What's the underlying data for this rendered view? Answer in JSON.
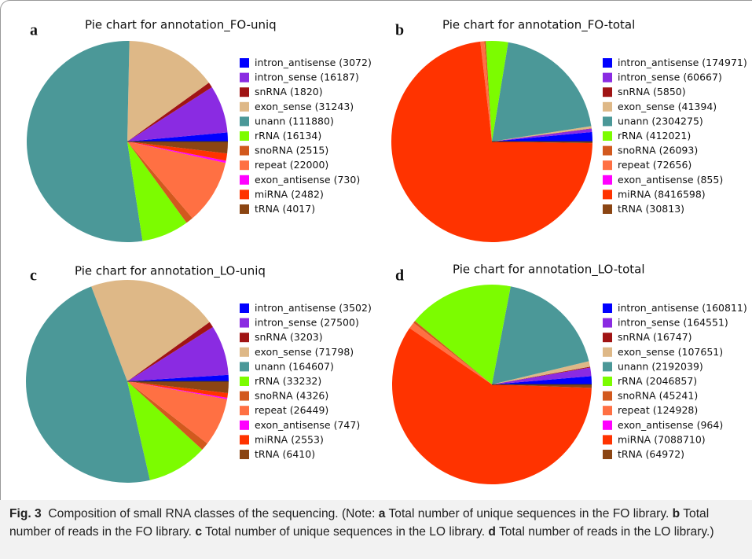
{
  "chart_data": [
    {
      "type": "pie",
      "panel": "a",
      "title": "Pie chart for annotation_FO-uniq",
      "categories": [
        "intron_antisense",
        "intron_sense",
        "snRNA",
        "exon_sense",
        "unann",
        "rRNA",
        "snoRNA",
        "repeat",
        "exon_antisense",
        "miRNA",
        "tRNA"
      ],
      "values": [
        3072,
        16187,
        1820,
        31243,
        111880,
        16134,
        2515,
        22000,
        730,
        2482,
        4017
      ],
      "value_labels": [
        "(3072)",
        "(16187)",
        "(1820)",
        "(31243)",
        "(111880)",
        "(16134)",
        "(2515)",
        "(22000)",
        "(730)",
        "(2482)",
        "(4017)"
      ],
      "colors": [
        "#0000ff",
        "#8a2be2",
        "#a01414",
        "#deb887",
        "#4b9898",
        "#7cfc00",
        "#d2591e",
        "#ff7043",
        "#ff00ff",
        "#ff3300",
        "#8b4513"
      ]
    },
    {
      "type": "pie",
      "panel": "b",
      "title": "Pie chart for annotation_FO-total",
      "categories": [
        "intron_antisense",
        "intron_sense",
        "snRNA",
        "exon_sense",
        "unann",
        "rRNA",
        "snoRNA",
        "repeat",
        "exon_antisense",
        "miRNA",
        "tRNA"
      ],
      "values": [
        174971,
        60667,
        5850,
        41394,
        2304275,
        412021,
        26093,
        72656,
        855,
        8416598,
        30813
      ],
      "value_labels": [
        "(174971)",
        "(60667)",
        "(5850)",
        "(41394)",
        "(2304275)",
        "(412021)",
        "(26093)",
        "(72656)",
        "(855)",
        "(8416598)",
        "(30813)"
      ],
      "colors": [
        "#0000ff",
        "#8a2be2",
        "#a01414",
        "#deb887",
        "#4b9898",
        "#7cfc00",
        "#d2591e",
        "#ff7043",
        "#ff00ff",
        "#ff3300",
        "#8b4513"
      ]
    },
    {
      "type": "pie",
      "panel": "c",
      "title": "Pie chart for annotation_LO-uniq",
      "categories": [
        "intron_antisense",
        "intron_sense",
        "snRNA",
        "exon_sense",
        "unann",
        "rRNA",
        "snoRNA",
        "repeat",
        "exon_antisense",
        "miRNA",
        "tRNA"
      ],
      "values": [
        3502,
        27500,
        3203,
        71798,
        164607,
        33232,
        4326,
        26449,
        747,
        2553,
        6410
      ],
      "value_labels": [
        "(3502)",
        "(27500)",
        "(3203)",
        "(71798)",
        "(164607)",
        "(33232)",
        "(4326)",
        "(26449)",
        "(747)",
        "(2553)",
        "(6410)"
      ],
      "colors": [
        "#0000ff",
        "#8a2be2",
        "#a01414",
        "#deb887",
        "#4b9898",
        "#7cfc00",
        "#d2591e",
        "#ff7043",
        "#ff00ff",
        "#ff3300",
        "#8b4513"
      ]
    },
    {
      "type": "pie",
      "panel": "d",
      "title": "Pie chart for annotation_LO-total",
      "categories": [
        "intron_antisense",
        "intron_sense",
        "snRNA",
        "exon_sense",
        "unann",
        "rRNA",
        "snoRNA",
        "repeat",
        "exon_antisense",
        "miRNA",
        "tRNA"
      ],
      "values": [
        160811,
        164551,
        16747,
        107651,
        2192039,
        2046857,
        45241,
        124928,
        964,
        7088710,
        64972
      ],
      "value_labels": [
        "(160811)",
        "(164551)",
        "(16747)",
        "(107651)",
        "(2192039)",
        "(2046857)",
        "(45241)",
        "(124928)",
        "(964)",
        "(7088710)",
        "(64972)"
      ],
      "colors": [
        "#0000ff",
        "#8a2be2",
        "#a01414",
        "#deb887",
        "#4b9898",
        "#7cfc00",
        "#d2591e",
        "#ff7043",
        "#ff00ff",
        "#ff3300",
        "#8b4513"
      ]
    }
  ],
  "caption": {
    "segments": [
      {
        "text": "Fig. 3",
        "bold": true
      },
      {
        "text": "  Composition of small RNA classes of the sequencing. (Note: ",
        "bold": false
      },
      {
        "text": "a",
        "bold": true
      },
      {
        "text": " Total number of unique sequences in the FO library. ",
        "bold": false
      },
      {
        "text": "b",
        "bold": true
      },
      {
        "text": " Total number of reads in the FO library. ",
        "bold": false
      },
      {
        "text": "c",
        "bold": true
      },
      {
        "text": " Total number of unique sequences in the LO library. ",
        "bold": false
      },
      {
        "text": "d",
        "bold": true
      },
      {
        "text": " Total number of reads in the LO library.)",
        "bold": false
      }
    ]
  }
}
